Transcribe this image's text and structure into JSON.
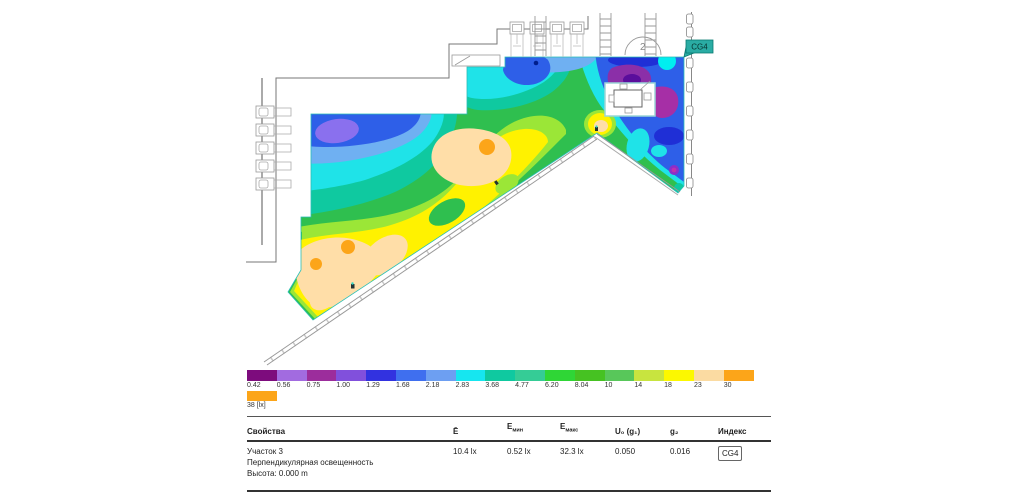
{
  "plan": {
    "surface_tag": "CG4",
    "stair_label": "2"
  },
  "scale": {
    "entries": [
      {
        "label": "0.42",
        "color": "#7D0C7D"
      },
      {
        "label": "0.56",
        "color": "#A26BE0"
      },
      {
        "label": "0.75",
        "color": "#9C2D9C"
      },
      {
        "label": "1.00",
        "color": "#8150DC"
      },
      {
        "label": "1.29",
        "color": "#3232E0"
      },
      {
        "label": "1.68",
        "color": "#3F6FEF"
      },
      {
        "label": "2.18",
        "color": "#6D9FF2"
      },
      {
        "label": "2.83",
        "color": "#16E6F0"
      },
      {
        "label": "3.68",
        "color": "#0FC9A0"
      },
      {
        "label": "4.77",
        "color": "#35CC96"
      },
      {
        "label": "6.20",
        "color": "#2FD636"
      },
      {
        "label": "8.04",
        "color": "#46C222"
      },
      {
        "label": "10",
        "color": "#58C75A"
      },
      {
        "label": "14",
        "color": "#C8E43F"
      },
      {
        "label": "18",
        "color": "#FCF800"
      },
      {
        "label": "23",
        "color": "#FBDBA2"
      },
      {
        "label": "30",
        "color": "#FCA519"
      }
    ],
    "overflow": {
      "label": "38 [lx]",
      "color": "#FCA519"
    }
  },
  "table": {
    "headers": {
      "properties": "Свойства",
      "e_avg": "Ē",
      "e_min_main": "E",
      "e_min_sub": "мин",
      "e_max_main": "E",
      "e_max_sub": "макс",
      "u0": "U₀ (g₁)",
      "g2": "g₂",
      "index": "Индекс"
    },
    "row": {
      "name": "Участок 3",
      "type": "Перпендикулярная освещенность",
      "height": "Высота: 0.000 m",
      "e_avg": "10.4 lx",
      "e_min": "0.52 lx",
      "e_max": "32.3 lx",
      "u0": "0.050",
      "g2": "0.016",
      "index": "CG4"
    }
  }
}
